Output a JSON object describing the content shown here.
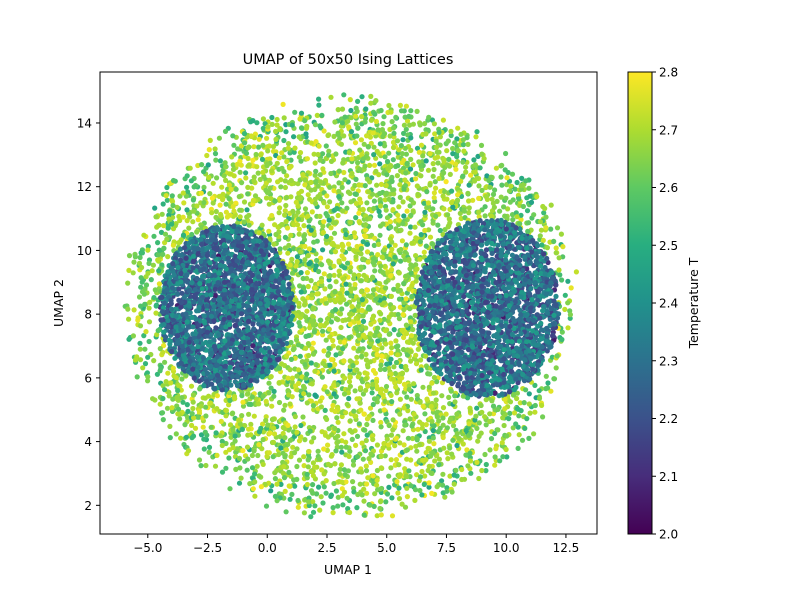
{
  "chart_data": {
    "type": "scatter",
    "title": "UMAP of 50x50 Ising Lattices",
    "xlabel": "UMAP 1",
    "ylabel": "UMAP 2",
    "xlim": [
      -7.0,
      13.8
    ],
    "ylim": [
      1.1,
      15.6
    ],
    "x_ticks": [
      {
        "value": -5.0,
        "label": "−5.0"
      },
      {
        "value": -2.5,
        "label": "−2.5"
      },
      {
        "value": 0.0,
        "label": "0.0"
      },
      {
        "value": 2.5,
        "label": "2.5"
      },
      {
        "value": 5.0,
        "label": "5.0"
      },
      {
        "value": 7.5,
        "label": "7.5"
      },
      {
        "value": 10.0,
        "label": "10.0"
      },
      {
        "value": 12.5,
        "label": "12.5"
      }
    ],
    "y_ticks": [
      {
        "value": 2,
        "label": "2"
      },
      {
        "value": 4,
        "label": "4"
      },
      {
        "value": 6,
        "label": "6"
      },
      {
        "value": 8,
        "label": "8"
      },
      {
        "value": 10,
        "label": "10"
      },
      {
        "value": 12,
        "label": "12"
      },
      {
        "value": 14,
        "label": "14"
      }
    ],
    "colorbar": {
      "label": "Temperature T",
      "min": 2.0,
      "max": 2.8,
      "colormap": "viridis",
      "ticks": [
        {
          "value": 2.0,
          "label": "2.0"
        },
        {
          "value": 2.1,
          "label": "2.1"
        },
        {
          "value": 2.2,
          "label": "2.2"
        },
        {
          "value": 2.3,
          "label": "2.3"
        },
        {
          "value": 2.4,
          "label": "2.4"
        },
        {
          "value": 2.5,
          "label": "2.5"
        },
        {
          "value": 2.6,
          "label": "2.6"
        },
        {
          "value": 2.7,
          "label": "2.7"
        },
        {
          "value": 2.8,
          "label": "2.8"
        }
      ]
    },
    "clusters": [
      {
        "name": "high-T disordered cloud",
        "center": [
          3.5,
          8.2
        ],
        "extent": [
          9.5,
          6.6
        ],
        "temperature_range": [
          2.5,
          2.8
        ]
      },
      {
        "name": "low-T ordered cluster (left)",
        "center": [
          -1.7,
          8.2
        ],
        "extent": [
          2.8,
          2.6
        ],
        "temperature_range": [
          2.05,
          2.45
        ]
      },
      {
        "name": "low-T ordered cluster (right)",
        "center": [
          9.2,
          8.2
        ],
        "extent": [
          3.0,
          2.8
        ],
        "temperature_range": [
          2.05,
          2.45
        ]
      }
    ],
    "grid": false,
    "legend": "none"
  }
}
